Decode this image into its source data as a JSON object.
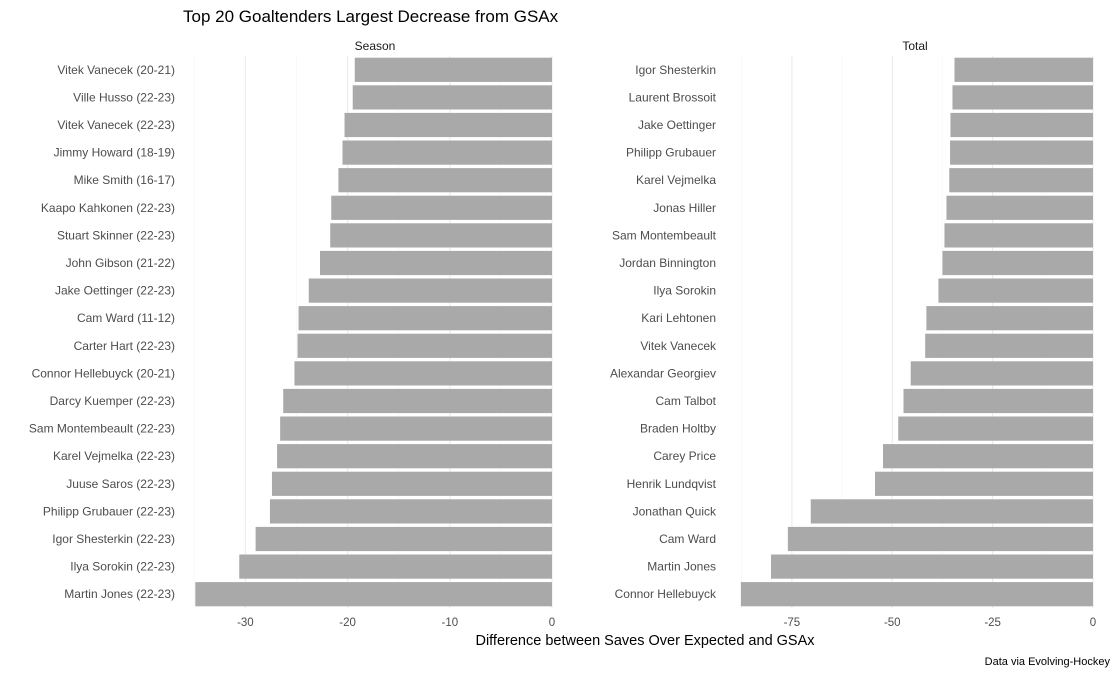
{
  "chart_data": {
    "title": "Top 20 Goaltenders Largest Decrease from GSAx",
    "xlabel": "Difference between Saves Over Expected and GSAx",
    "caption": "Data via Evolving-Hockey",
    "panels": [
      {
        "type": "bar",
        "orientation": "horizontal",
        "strip": "Season",
        "xlim": [
          -35,
          0
        ],
        "ticks": [
          -30,
          -20,
          -10,
          0
        ],
        "tick_labels": [
          "-30",
          "-20",
          "-10",
          "0"
        ],
        "categories": [
          "Vitek Vanecek (20-21)",
          "Ville Husso (22-23)",
          "Vitek Vanecek (22-23)",
          "Jimmy Howard (18-19)",
          "Mike Smith (16-17)",
          "Kaapo Kahkonen (22-23)",
          "Stuart Skinner (22-23)",
          "John Gibson (21-22)",
          "Jake Oettinger (22-23)",
          "Cam Ward (11-12)",
          "Carter Hart (22-23)",
          "Connor Hellebuyck (20-21)",
          "Darcy Kuemper (22-23)",
          "Sam Montembeault (22-23)",
          "Karel Vejmelka (22-23)",
          "Juuse Saros (22-23)",
          "Philipp Grubauer (22-23)",
          "Igor Shesterkin (22-23)",
          "Ilya Sorokin (22-23)",
          "Martin Jones (22-23)"
        ],
        "values": [
          -19.3,
          -19.5,
          -20.3,
          -20.5,
          -20.9,
          -21.6,
          -21.7,
          -22.7,
          -23.8,
          -24.8,
          -24.9,
          -25.2,
          -26.3,
          -26.6,
          -26.9,
          -27.4,
          -27.6,
          -29.0,
          -30.6,
          -34.9
        ]
      },
      {
        "type": "bar",
        "orientation": "horizontal",
        "strip": "Total",
        "xlim": [
          -88,
          0
        ],
        "ticks": [
          -75,
          -50,
          -25,
          0
        ],
        "tick_labels": [
          "-75",
          "-50",
          "-25",
          "0"
        ],
        "categories": [
          "Igor Shesterkin",
          "Laurent Brossoit",
          "Jake Oettinger",
          "Philipp Grubauer",
          "Karel Vejmelka",
          "Jonas Hiller",
          "Sam Montembeault",
          "Jordan Binnington",
          "Ilya Sorokin",
          "Kari Lehtonen",
          "Vitek Vanecek",
          "Alexandar Georgiev",
          "Cam Talbot",
          "Braden Holtby",
          "Carey Price",
          "Henrik Lundqvist",
          "Jonathan Quick",
          "Cam Ward",
          "Martin Jones",
          "Connor Hellebuyck"
        ],
        "values": [
          -34.5,
          -35.0,
          -35.5,
          -35.6,
          -35.8,
          -36.5,
          -37.0,
          -37.5,
          -38.5,
          -41.5,
          -41.8,
          -45.4,
          -47.2,
          -48.5,
          -52.3,
          -54.3,
          -70.3,
          -76.0,
          -80.2,
          -87.7
        ]
      }
    ],
    "grid": true,
    "legend": "none",
    "bar_color": "#a9a9a9"
  }
}
